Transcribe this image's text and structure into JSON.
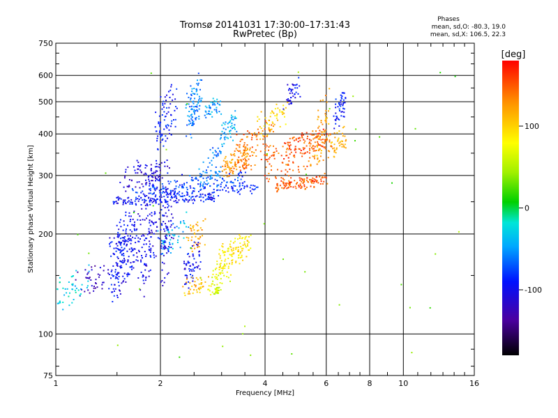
{
  "chart_data": {
    "type": "scatter",
    "title": "Tromsø 20141031 17:30:00–17:31:43",
    "subtitle": "RwPretec (Bp)",
    "xlabel": "Frequency [MHz]",
    "ylabel": "Stationary phase Virtual Height [km]",
    "xscale": "log",
    "yscale": "log",
    "xlim": [
      1,
      16
    ],
    "ylim": [
      75,
      750
    ],
    "x_ticks": [
      1,
      2,
      4,
      6,
      8,
      10,
      16
    ],
    "y_ticks": [
      75,
      100,
      200,
      300,
      400,
      500,
      600,
      750
    ],
    "grid": true,
    "stats": {
      "heading": "Phases",
      "line1": "mean, sd,O: -80.3, 19.0",
      "line2": "mean, sd,X: 106.5, 22.3"
    },
    "colorbar": {
      "label": "[deg]",
      "range": [
        -180,
        180
      ],
      "ticks": [
        100,
        0,
        -100
      ],
      "colormap": "rainbow"
    },
    "series": [
      {
        "phase": -95,
        "x": [
          1.45,
          2.9
        ],
        "h": [
          245,
          262
        ],
        "n": 140,
        "jx": 0.01,
        "jh": 0.02
      },
      {
        "phase": -85,
        "x": [
          1.65,
          3.8
        ],
        "h": [
          255,
          285
        ],
        "n": 130,
        "jx": 0.01,
        "jh": 0.02
      },
      {
        "phase": -75,
        "x": [
          1.85,
          3.5
        ],
        "h": [
          262,
          310
        ],
        "n": 90,
        "jx": 0.01,
        "jh": 0.02
      },
      {
        "phase": -95,
        "x": [
          1.45,
          1.6
        ],
        "h": [
          125,
          245
        ],
        "n": 110,
        "jx": 0.03,
        "jh": 0.02
      },
      {
        "phase": -100,
        "x": [
          1.52,
          1.72
        ],
        "h": [
          125,
          250
        ],
        "n": 110,
        "jx": 0.03,
        "jh": 0.02
      },
      {
        "phase": -105,
        "x": [
          1.75,
          1.95
        ],
        "h": [
          128,
          330
        ],
        "n": 120,
        "jx": 0.03,
        "jh": 0.02
      },
      {
        "phase": -110,
        "x": [
          1.55,
          2.1
        ],
        "h": [
          270,
          340
        ],
        "n": 80,
        "jx": 0.02,
        "jh": 0.04
      },
      {
        "phase": -100,
        "x": [
          2.0,
          2.15
        ],
        "h": [
          130,
          330
        ],
        "n": 100,
        "jx": 0.03,
        "jh": 0.02
      },
      {
        "phase": -90,
        "x": [
          1.95,
          2.2
        ],
        "h": [
          340,
          590
        ],
        "n": 80,
        "jx": 0.02,
        "jh": 0.03
      },
      {
        "phase": -60,
        "x": [
          2.4,
          2.6
        ],
        "h": [
          380,
          620
        ],
        "n": 90,
        "jx": 0.02,
        "jh": 0.03
      },
      {
        "phase": -50,
        "x": [
          2.7,
          3.0
        ],
        "h": [
          440,
          520
        ],
        "n": 40,
        "jx": 0.02,
        "jh": 0.03
      },
      {
        "phase": -45,
        "x": [
          3.0,
          3.3
        ],
        "h": [
          370,
          470
        ],
        "n": 50,
        "jx": 0.02,
        "jh": 0.03
      },
      {
        "phase": -120,
        "x": [
          1.15,
          1.4
        ],
        "h": [
          125,
          170
        ],
        "n": 40,
        "jx": 0.03,
        "jh": 0.03
      },
      {
        "phase": -30,
        "x": [
          1.0,
          1.25
        ],
        "h": [
          120,
          160
        ],
        "n": 50,
        "jx": 0.03,
        "jh": 0.03
      },
      {
        "phase": -100,
        "x": [
          2.35,
          2.6
        ],
        "h": [
          130,
          200
        ],
        "n": 60,
        "jx": 0.02,
        "jh": 0.03
      },
      {
        "phase": -60,
        "x": [
          2.6,
          3.0
        ],
        "h": [
          260,
          380
        ],
        "n": 60,
        "jx": 0.02,
        "jh": 0.03
      },
      {
        "phase": 130,
        "x": [
          3.05,
          3.6
        ],
        "h": [
          300,
          370
        ],
        "n": 100,
        "jx": 0.02,
        "jh": 0.03
      },
      {
        "phase": 140,
        "x": [
          3.3,
          4.2
        ],
        "h": [
          290,
          460
        ],
        "n": 90,
        "jx": 0.02,
        "jh": 0.03
      },
      {
        "phase": 150,
        "x": [
          4.3,
          6.0
        ],
        "h": [
          270,
          300
        ],
        "n": 120,
        "jx": 0.01,
        "jh": 0.02
      },
      {
        "phase": 145,
        "x": [
          4.0,
          6.2
        ],
        "h": [
          285,
          410
        ],
        "n": 110,
        "jx": 0.01,
        "jh": 0.02
      },
      {
        "phase": 155,
        "x": [
          4.5,
          6.0
        ],
        "h": [
          330,
          420
        ],
        "n": 80,
        "jx": 0.01,
        "jh": 0.02
      },
      {
        "phase": 100,
        "x": [
          3.8,
          4.6
        ],
        "h": [
          390,
          500
        ],
        "n": 50,
        "jx": 0.02,
        "jh": 0.03
      },
      {
        "phase": 120,
        "x": [
          5.5,
          6.1
        ],
        "h": [
          300,
          560
        ],
        "n": 60,
        "jx": 0.02,
        "jh": 0.03
      },
      {
        "phase": 110,
        "x": [
          6.3,
          6.8
        ],
        "h": [
          340,
          420
        ],
        "n": 40,
        "jx": 0.02,
        "jh": 0.03
      },
      {
        "phase": -90,
        "x": [
          6.4,
          6.8
        ],
        "h": [
          420,
          560
        ],
        "n": 50,
        "jx": 0.02,
        "jh": 0.03
      },
      {
        "phase": -100,
        "x": [
          4.6,
          5.0
        ],
        "h": [
          470,
          600
        ],
        "n": 40,
        "jx": 0.02,
        "jh": 0.03
      },
      {
        "phase": 90,
        "x": [
          2.95,
          3.6
        ],
        "h": [
          155,
          200
        ],
        "n": 110,
        "jx": 0.03,
        "jh": 0.03
      },
      {
        "phase": 70,
        "x": [
          2.8,
          3.2
        ],
        "h": [
          135,
          170
        ],
        "n": 40,
        "jx": 0.03,
        "jh": 0.03
      },
      {
        "phase": 110,
        "x": [
          2.35,
          2.7
        ],
        "h": [
          130,
          150
        ],
        "n": 40,
        "jx": 0.03,
        "jh": 0.03
      },
      {
        "phase": 60,
        "x": [
          2.8,
          2.95
        ],
        "h": [
          128,
          140
        ],
        "n": 25,
        "jx": 0.02,
        "jh": 0.02
      },
      {
        "phase": 120,
        "x": [
          2.4,
          2.7
        ],
        "h": [
          170,
          230
        ],
        "n": 40,
        "jx": 0.02,
        "jh": 0.03
      },
      {
        "phase": -40,
        "x": [
          2.0,
          2.4
        ],
        "h": [
          170,
          230
        ],
        "n": 40,
        "jx": 0.03,
        "jh": 0.03
      },
      {
        "phase": 30,
        "x": [
          1.0,
          16.0
        ],
        "h": [
          80,
          650
        ],
        "n": 40,
        "jx": 0.0,
        "jh": 0.0
      }
    ]
  }
}
